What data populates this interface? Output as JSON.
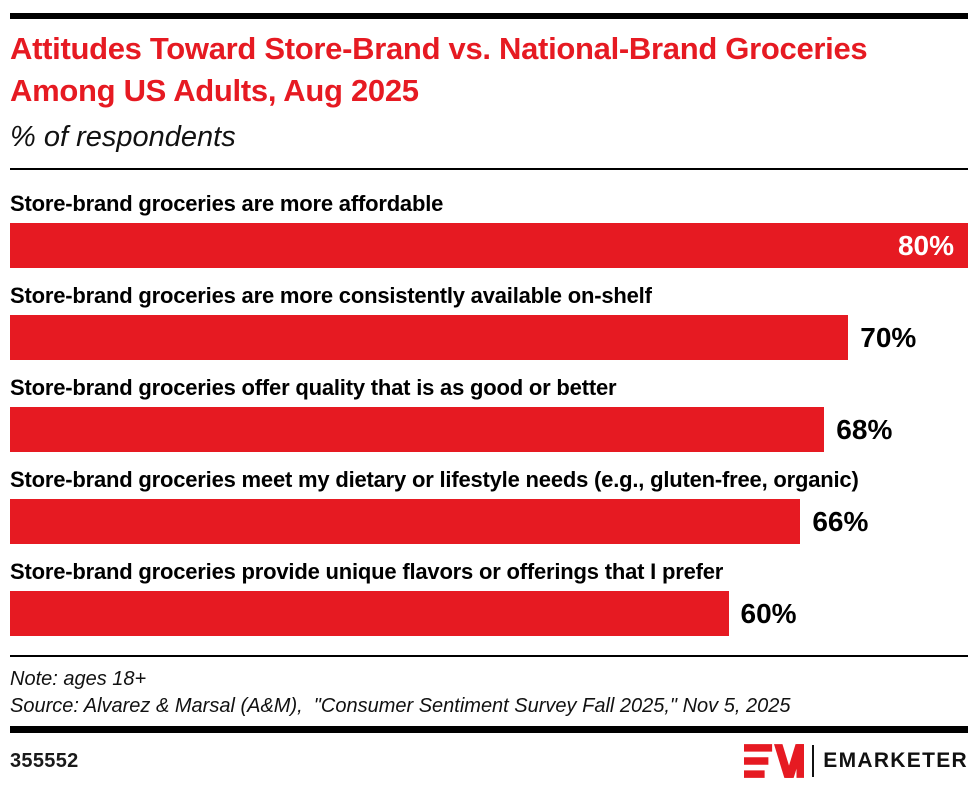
{
  "header": {
    "title": "Attitudes Toward Store-Brand vs. National-Brand Groceries Among US Adults, Aug 2025",
    "subtitle": "% of respondents"
  },
  "chart_data": {
    "type": "bar",
    "orientation": "horizontal",
    "title": "Attitudes Toward Store-Brand vs. National-Brand Groceries Among US Adults, Aug 2025",
    "subtitle": "% of respondents",
    "unit": "%",
    "xlim": [
      0,
      80
    ],
    "axis_max": 80,
    "grid": false,
    "bar_color": "#E61A22",
    "categories": [
      "Store-brand groceries are more affordable",
      "Store-brand groceries are more consistently available on-shelf",
      "Store-brand groceries offer quality that is as good or better",
      "Store-brand groceries meet my dietary or lifestyle needs (e.g., gluten-free, organic)",
      "Store-brand groceries provide unique flavors or offerings that I prefer"
    ],
    "values": [
      80,
      70,
      68,
      66,
      60
    ],
    "value_labels": [
      "80%",
      "70%",
      "68%",
      "66%",
      "60%"
    ],
    "value_label_positions": [
      "inside",
      "outside",
      "outside",
      "outside",
      "outside"
    ]
  },
  "footer": {
    "note": "Note: ages 18+",
    "source": "Source: Alvarez & Marsal (A&M),  \"Consumer Sentiment Survey Fall 2025,\" Nov 5, 2025",
    "chart_id": "355552",
    "logo_text": "EMARKETER"
  },
  "colors": {
    "accent_red": "#E61A22",
    "rule_black": "#000000",
    "value_inside_text": "#ffffff"
  },
  "icons": {
    "logo_mark": "emarketer-em-logo"
  }
}
